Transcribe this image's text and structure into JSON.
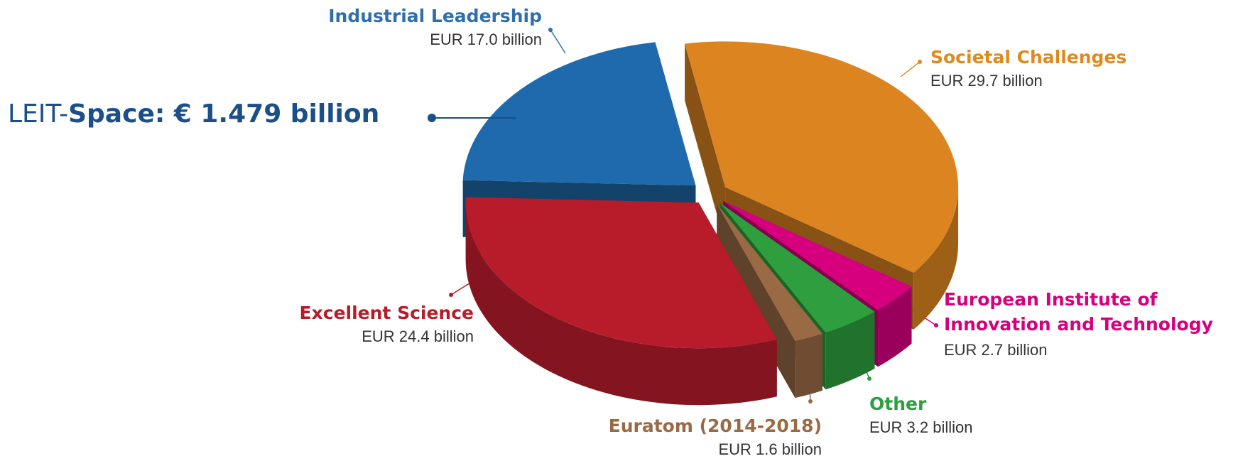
{
  "chart_data": {
    "type": "pie",
    "categories": [
      "Societal Challenges",
      "European Institute of Innovation and Technology",
      "Other",
      "Euratom (2014-2018)",
      "Excellent Science",
      "Industrial Leadership"
    ],
    "values": [
      29.7,
      2.7,
      3.2,
      1.6,
      24.4,
      17.0
    ],
    "value_labels": [
      "EUR 29.7 billion",
      "EUR 2.7 billion",
      "EUR 3.2 billion",
      "EUR 1.6 billion",
      "EUR 24.4 billion",
      "EUR 17.0 billion"
    ],
    "colors": [
      "#dc8520",
      "#d6007e",
      "#2e9e3e",
      "#9a6a45",
      "#b81c2b",
      "#1f6aac"
    ],
    "annotation": [
      "LEIT-",
      "Space: € 1.479 billion"
    ]
  }
}
